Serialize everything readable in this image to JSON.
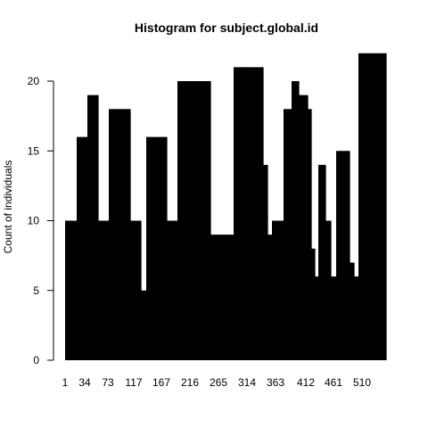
{
  "colors": {
    "bar": "#000000",
    "background": "#ffffff",
    "axis": "#000000"
  },
  "chart_data": {
    "type": "bar",
    "title": "Histogram for subject.global.id",
    "xlabel": "",
    "ylabel": "Count of individuals",
    "grid": false,
    "legend": "none",
    "ylim": [
      0,
      22
    ],
    "y_ticks": [
      0,
      5,
      10,
      15,
      20
    ],
    "x_tick_labels": [
      "1",
      "34",
      "73",
      "117",
      "167",
      "216",
      "265",
      "314",
      "363",
      "412",
      "461",
      "510"
    ],
    "series": [
      {
        "values": [
          10,
          16,
          19,
          10,
          18,
          18,
          10,
          5,
          16,
          10,
          20,
          20,
          9,
          21,
          21,
          14,
          9,
          10,
          18,
          20,
          19,
          18,
          8,
          6,
          14,
          10,
          6,
          15,
          7,
          6,
          22
        ]
      }
    ],
    "bar_widths": [
      13,
      12,
      12,
      12,
      12,
      12,
      12,
      6,
      23,
      12,
      26,
      11,
      26,
      14,
      19,
      5,
      5,
      13,
      9,
      8,
      10,
      4,
      4,
      4,
      8,
      6,
      6,
      15,
      5,
      5,
      31
    ]
  }
}
